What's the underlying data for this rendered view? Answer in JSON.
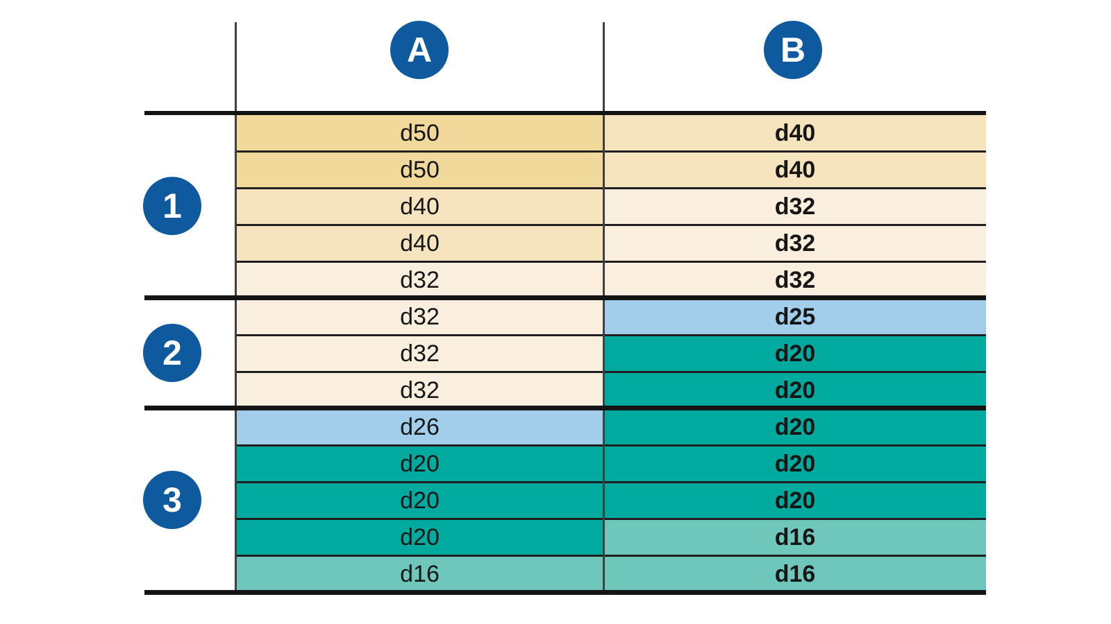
{
  "diagram": {
    "column_badges": [
      {
        "id": "A",
        "label": "A"
      },
      {
        "id": "B",
        "label": "B"
      }
    ],
    "group_badges": [
      {
        "id": "1",
        "label": "1"
      },
      {
        "id": "2",
        "label": "2"
      },
      {
        "id": "3",
        "label": "3"
      }
    ],
    "rows": [
      {
        "group": "1",
        "a": {
          "value": "d50",
          "color_key": "tan_dark"
        },
        "b": {
          "value": "d40",
          "color_key": "tan_medium"
        }
      },
      {
        "group": "1",
        "a": {
          "value": "d50",
          "color_key": "tan_dark"
        },
        "b": {
          "value": "d40",
          "color_key": "tan_medium"
        }
      },
      {
        "group": "1",
        "a": {
          "value": "d40",
          "color_key": "tan_medium"
        },
        "b": {
          "value": "d32",
          "color_key": "cream"
        }
      },
      {
        "group": "1",
        "a": {
          "value": "d40",
          "color_key": "tan_medium"
        },
        "b": {
          "value": "d32",
          "color_key": "cream"
        }
      },
      {
        "group": "1",
        "a": {
          "value": "d32",
          "color_key": "cream"
        },
        "b": {
          "value": "d32",
          "color_key": "cream"
        }
      },
      {
        "group": "2",
        "a": {
          "value": "d32",
          "color_key": "cream"
        },
        "b": {
          "value": "d25",
          "color_key": "blue"
        }
      },
      {
        "group": "2",
        "a": {
          "value": "d32",
          "color_key": "cream"
        },
        "b": {
          "value": "d20",
          "color_key": "teal"
        }
      },
      {
        "group": "2",
        "a": {
          "value": "d32",
          "color_key": "cream"
        },
        "b": {
          "value": "d20",
          "color_key": "teal"
        }
      },
      {
        "group": "3",
        "a": {
          "value": "d26",
          "color_key": "blue"
        },
        "b": {
          "value": "d20",
          "color_key": "teal"
        }
      },
      {
        "group": "3",
        "a": {
          "value": "d20",
          "color_key": "teal"
        },
        "b": {
          "value": "d20",
          "color_key": "teal"
        }
      },
      {
        "group": "3",
        "a": {
          "value": "d20",
          "color_key": "teal"
        },
        "b": {
          "value": "d20",
          "color_key": "teal"
        }
      },
      {
        "group": "3",
        "a": {
          "value": "d20",
          "color_key": "teal"
        },
        "b": {
          "value": "d16",
          "color_key": "teal_light"
        }
      },
      {
        "group": "3",
        "a": {
          "value": "d16",
          "color_key": "teal_light"
        },
        "b": {
          "value": "d16",
          "color_key": "teal_light"
        }
      }
    ],
    "colors": {
      "tan_dark": "#F1D99C",
      "tan_medium": "#F6E4BE",
      "cream": "#FAEFDE",
      "blue": "#A2CEEC",
      "teal": "#00AA9E",
      "teal_light": "#6FC7BC",
      "badge_blue": "#0F5A9E"
    }
  }
}
